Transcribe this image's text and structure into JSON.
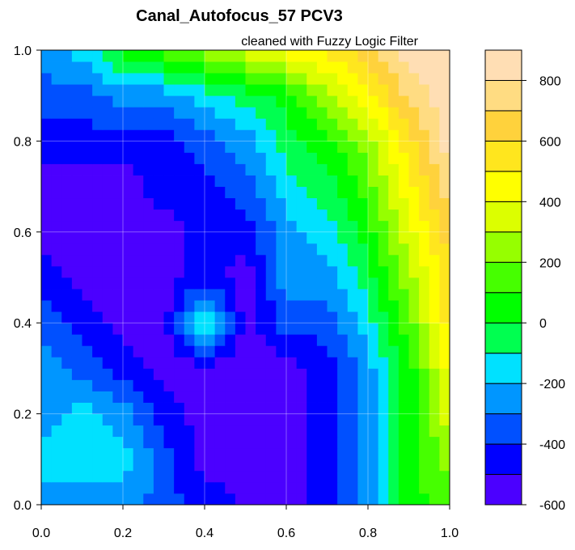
{
  "chart_data": {
    "type": "heatmap",
    "subtype": "filled-contour",
    "title": "Canal_Autofocus_57 PCV3",
    "subtitle": "cleaned with Fuzzy Logic Filter",
    "xlabel": "",
    "ylabel": "",
    "xlim": [
      0,
      1
    ],
    "ylim": [
      0,
      1
    ],
    "x_ticks": [
      "0.0",
      "0.2",
      "0.4",
      "0.6",
      "0.8",
      "1.0"
    ],
    "y_ticks": [
      "0.0",
      "0.2",
      "0.4",
      "0.6",
      "0.8",
      "1.0"
    ],
    "grid": true,
    "legend": "right colorbar",
    "colorbar": {
      "min": -600,
      "max": 900,
      "step": 100,
      "tick_labels": [
        "-600",
        "-400",
        "-200",
        "0",
        "200",
        "400",
        "600",
        "800"
      ],
      "tick_values": [
        -600,
        -400,
        -200,
        0,
        200,
        400,
        600,
        800
      ],
      "colors": [
        "#4B00FF",
        "#0000FF",
        "#0050FF",
        "#0096FF",
        "#00E1FF",
        "#00FF50",
        "#00FF00",
        "#46FF00",
        "#96FF00",
        "#DCFF00",
        "#FFFF00",
        "#FFE61E",
        "#FFD23C",
        "#FFDC82",
        "#FFDEB4"
      ]
    },
    "x": [
      0.0,
      0.1,
      0.2,
      0.3,
      0.4,
      0.5,
      0.6,
      0.7,
      0.8,
      0.9,
      1.0
    ],
    "y": [
      0.0,
      0.1,
      0.2,
      0.3,
      0.4,
      0.5,
      0.6,
      0.7,
      0.8,
      0.9,
      1.0
    ],
    "z": [
      [
        -250,
        -250,
        -250,
        -350,
        -450,
        -500,
        -550,
        -450,
        -250,
        50,
        150
      ],
      [
        -150,
        -150,
        -150,
        -350,
        -550,
        -550,
        -550,
        -450,
        -250,
        50,
        250
      ],
      [
        -250,
        -150,
        -250,
        -450,
        -550,
        -500,
        -550,
        -450,
        -250,
        50,
        350
      ],
      [
        -250,
        -350,
        -450,
        -550,
        -550,
        -550,
        -550,
        -450,
        -250,
        50,
        450
      ],
      [
        -350,
        -450,
        -550,
        -550,
        0,
        -550,
        -350,
        -350,
        -150,
        150,
        550
      ],
      [
        -450,
        -550,
        -550,
        -550,
        -450,
        -550,
        -250,
        -250,
        -50,
        250,
        550
      ],
      [
        -550,
        -550,
        -550,
        -550,
        -450,
        -450,
        -250,
        -150,
        50,
        350,
        650
      ],
      [
        -550,
        -550,
        -550,
        -450,
        -450,
        -350,
        -150,
        -50,
        150,
        450,
        750
      ],
      [
        -450,
        -450,
        -450,
        -450,
        -350,
        -250,
        -50,
        50,
        250,
        550,
        850
      ],
      [
        -350,
        -350,
        -250,
        -250,
        -150,
        -50,
        50,
        250,
        450,
        750,
        850
      ],
      [
        -250,
        -150,
        50,
        150,
        250,
        350,
        450,
        550,
        650,
        850,
        850
      ]
    ]
  }
}
